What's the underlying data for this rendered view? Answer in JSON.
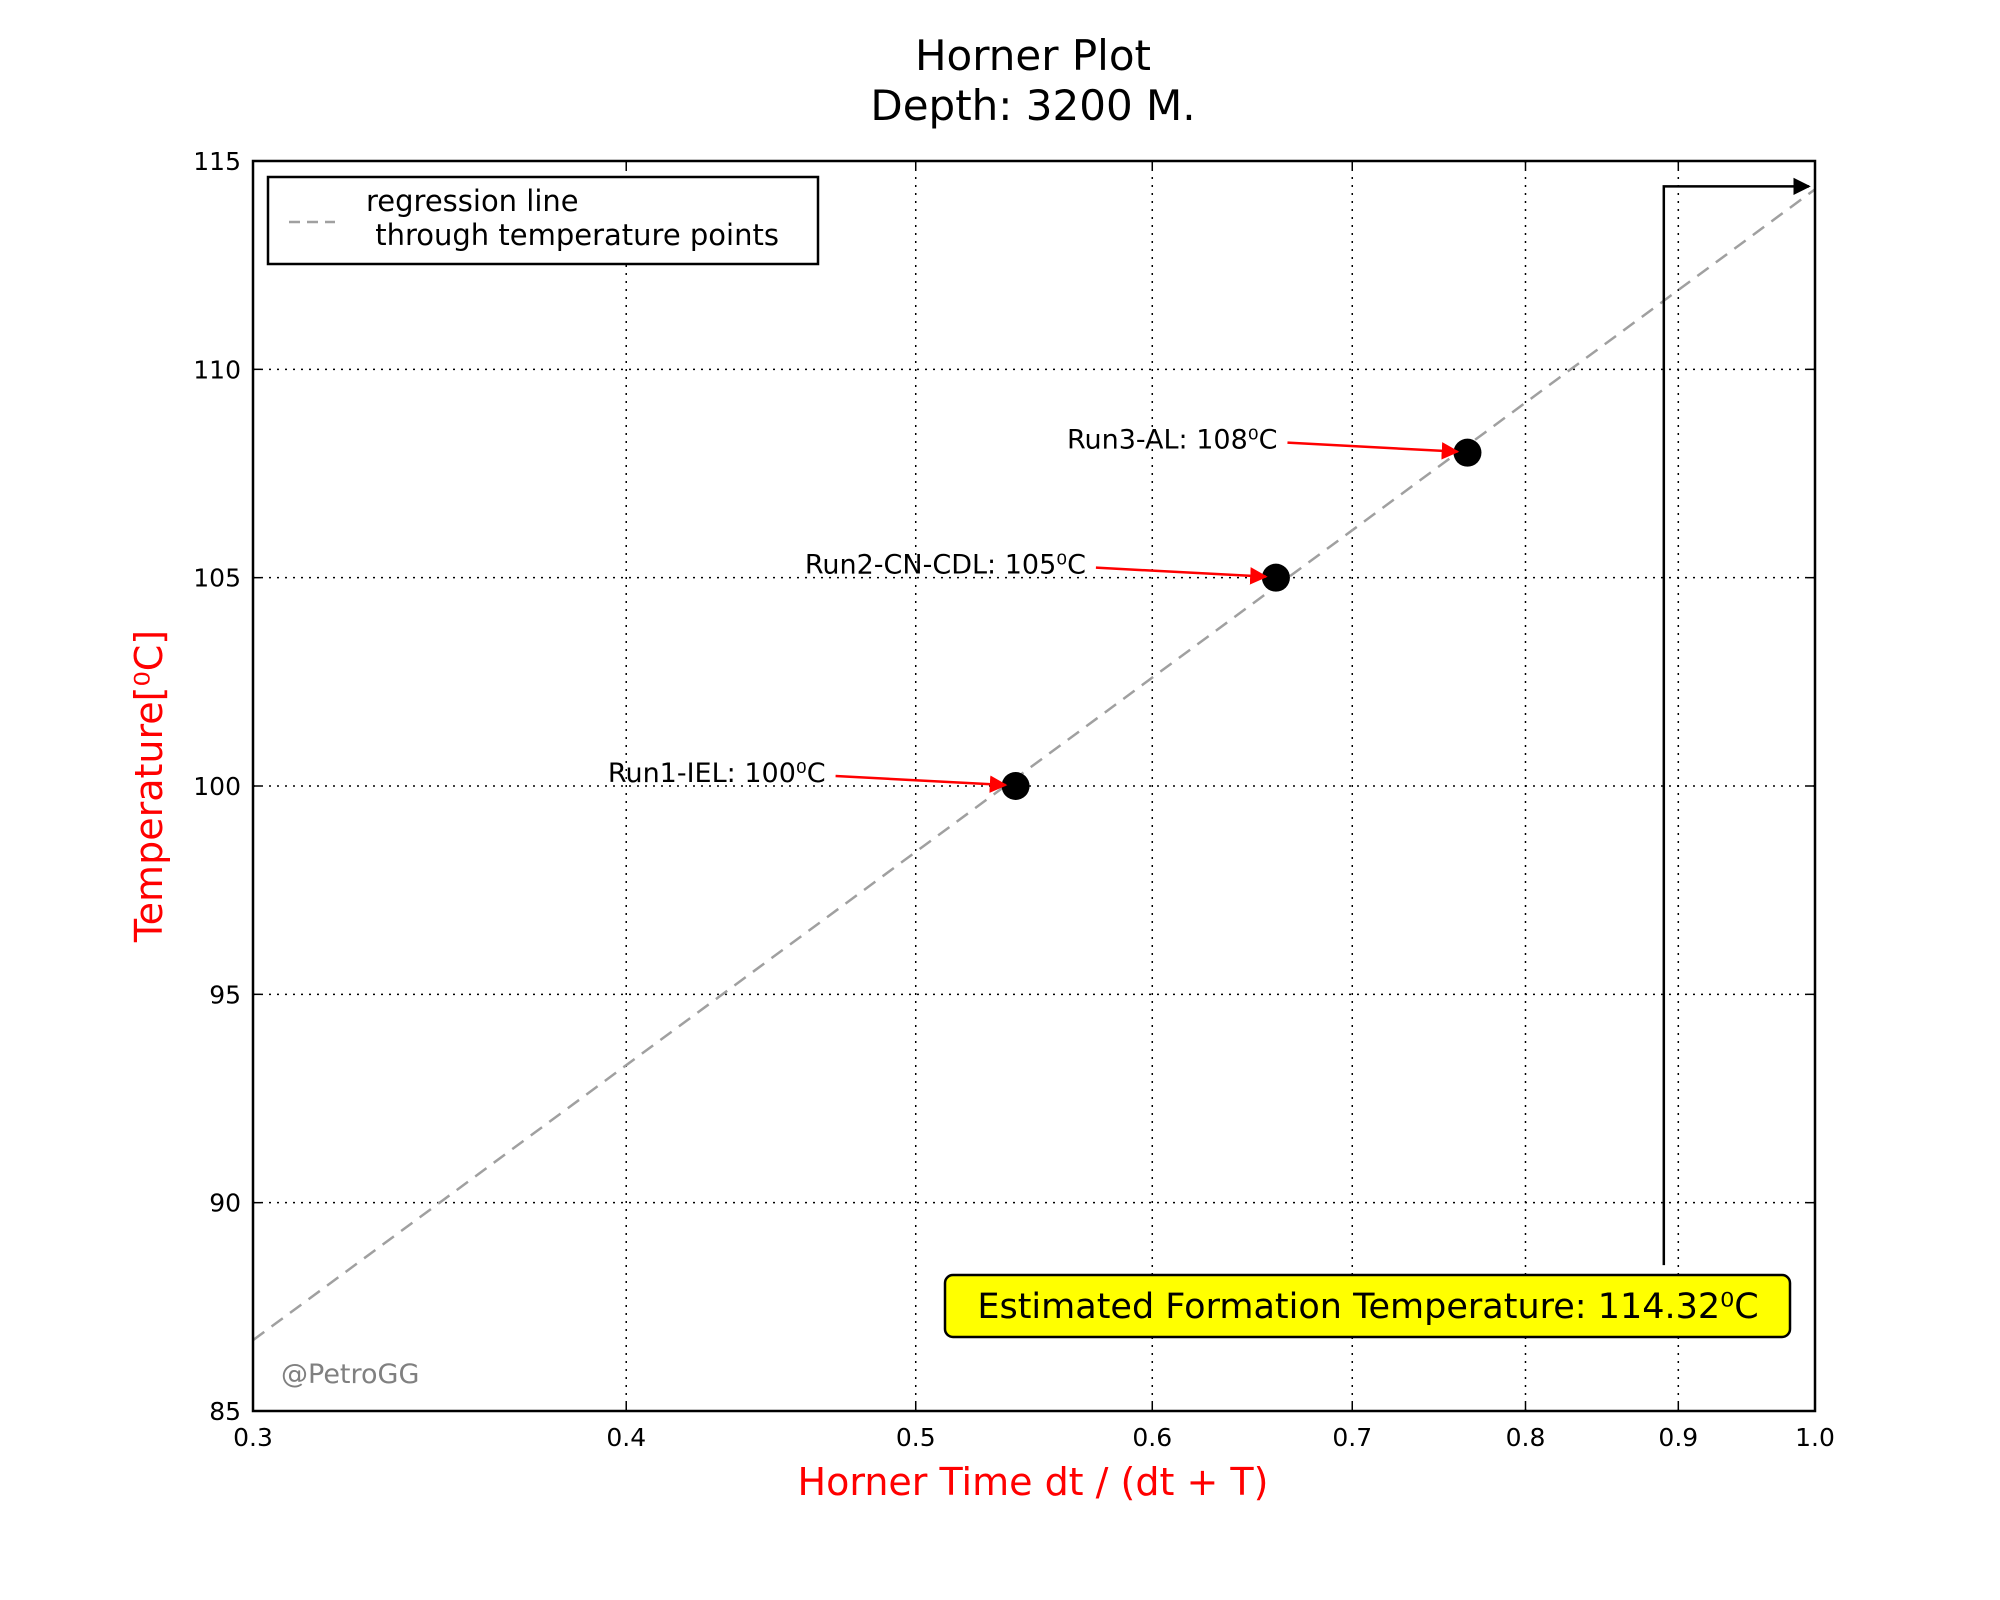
{
  "chart_data": {
    "type": "scatter",
    "title": "Horner Plot",
    "subtitle": "Depth: 3200 M.",
    "xlabel": "Horner Time  dt / (dt + T)",
    "ylabel": "Temperature[⁰C]",
    "xscale": "log",
    "xlim": [
      0.3,
      1.0
    ],
    "ylim": [
      85,
      115
    ],
    "xticks": [
      0.3,
      0.4,
      0.5,
      0.6,
      0.7,
      0.8,
      0.9,
      1.0
    ],
    "xtick_labels": [
      "0.3",
      "0.4",
      "0.5",
      "0.6",
      "0.7",
      "0.8",
      "0.9",
      "1.0"
    ],
    "yticks": [
      85,
      90,
      95,
      100,
      105,
      110,
      115
    ],
    "ytick_labels": [
      "85",
      "90",
      "95",
      "100",
      "105",
      "110",
      "115"
    ],
    "grid": true,
    "legend_position": "top-left",
    "points": [
      {
        "x": 0.54,
        "y": 100,
        "label": "Run1-IEL: 100⁰C"
      },
      {
        "x": 0.66,
        "y": 105,
        "label": "Run2-CN-CDL: 105⁰C"
      },
      {
        "x": 0.765,
        "y": 108,
        "label": "Run3-AL: 108⁰C"
      }
    ],
    "regression": {
      "name": "regression line\n through temperature points",
      "x": [
        0.3,
        1.0
      ],
      "y": [
        86.7,
        114.32
      ]
    },
    "extrapolation_arrow": {
      "x_from": 0.89,
      "y_from": 88.5,
      "y_at": 114.32,
      "x_to": 1.0
    },
    "annotation_box": "Estimated Formation Temperature: 114.32⁰C",
    "watermark": "@PetroGG"
  },
  "colors": {
    "axis_label": "#ff0000",
    "arrow": "#ff0000",
    "point": "#000000",
    "regression": "#a0a0a0",
    "box_fill": "#ffff00",
    "grid": "#000000"
  }
}
